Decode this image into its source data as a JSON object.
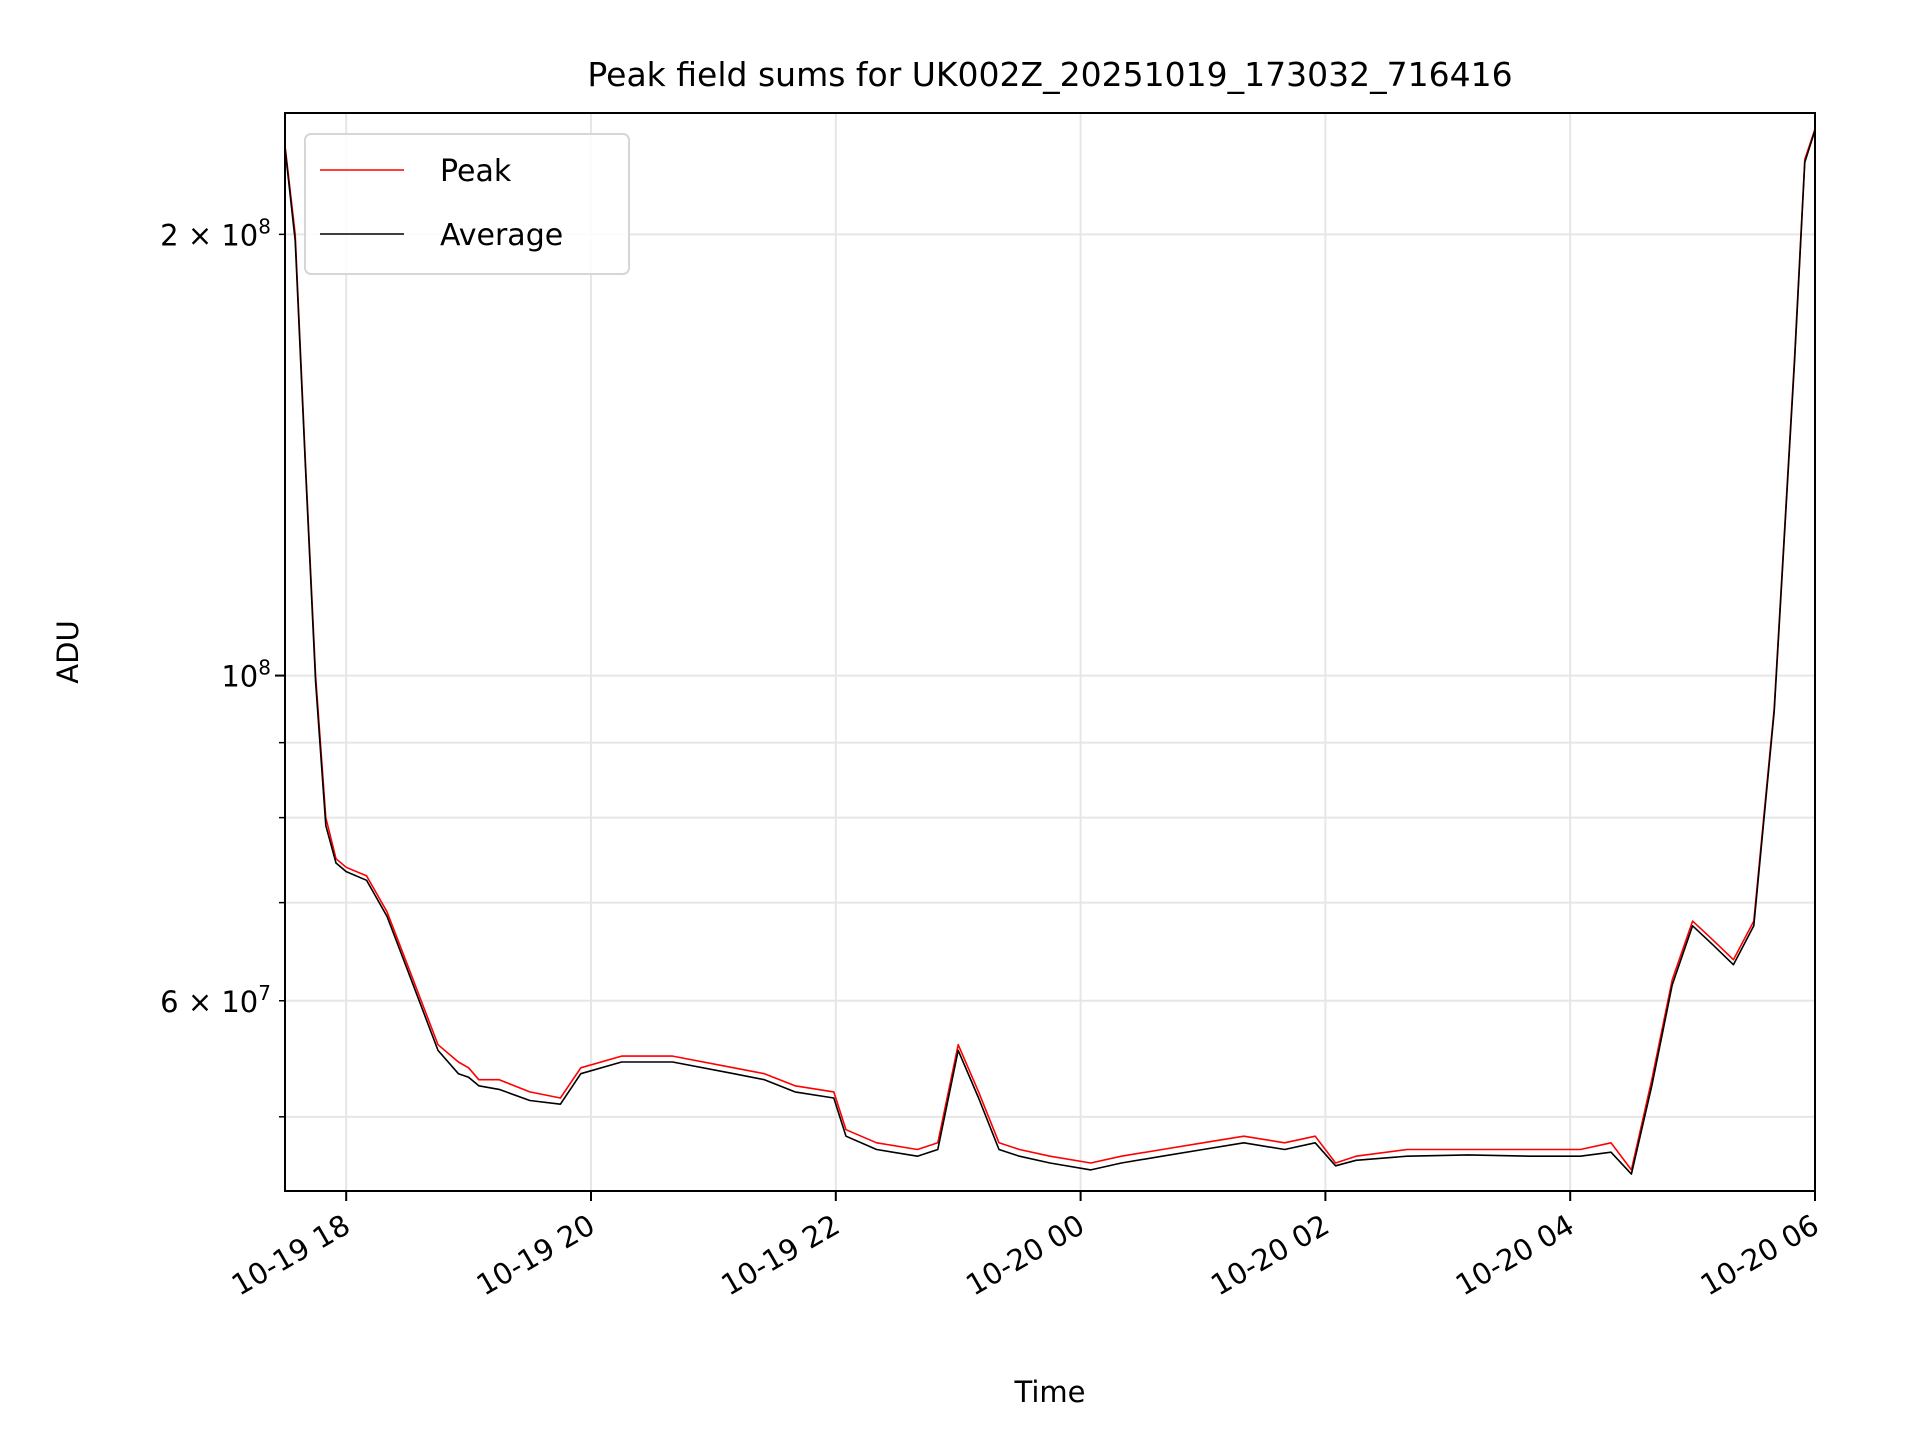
{
  "chart_data": {
    "type": "line",
    "title": "Peak field sums for UK002Z_20251019_173032_716416",
    "xlabel": "Time",
    "ylabel": "ADU",
    "yscale": "log",
    "grid": true,
    "legend_placement": "top-left",
    "xlim": [
      "2025-10-19 17:30",
      "2025-10-20 06:00"
    ],
    "ylim": [
      44500000,
      242000000
    ],
    "x_ticks": [
      {
        "value": "2025-10-19 18:00",
        "label": "10-19 18"
      },
      {
        "value": "2025-10-19 20:00",
        "label": "10-19 20"
      },
      {
        "value": "2025-10-19 22:00",
        "label": "10-19 22"
      },
      {
        "value": "2025-10-20 00:00",
        "label": "10-20 00"
      },
      {
        "value": "2025-10-20 02:00",
        "label": "10-20 02"
      },
      {
        "value": "2025-10-20 04:00",
        "label": "10-20 04"
      },
      {
        "value": "2025-10-20 06:00",
        "label": "10-20 06"
      }
    ],
    "y_major_ticks": [
      {
        "value": 100000000,
        "base": "10",
        "exp": "8"
      }
    ],
    "y_minor_ticks": [
      {
        "value": 200000000,
        "mant": "2",
        "exp": "8"
      },
      {
        "value": 60000000,
        "mant": "6",
        "exp": "7"
      }
    ],
    "y_minor_unlabeled": [
      50000000,
      70000000,
      80000000,
      90000000
    ],
    "series": [
      {
        "name": "Peak",
        "color": "#ff0000",
        "x": [
          "2025-10-19 17:30",
          "2025-10-19 17:35",
          "2025-10-19 17:40",
          "2025-10-19 17:45",
          "2025-10-19 17:50",
          "2025-10-19 17:55",
          "2025-10-19 18:00",
          "2025-10-19 18:10",
          "2025-10-19 18:20",
          "2025-10-19 18:30",
          "2025-10-19 18:45",
          "2025-10-19 18:55",
          "2025-10-19 19:00",
          "2025-10-19 19:05",
          "2025-10-19 19:15",
          "2025-10-19 19:30",
          "2025-10-19 19:45",
          "2025-10-19 19:55",
          "2025-10-19 20:15",
          "2025-10-19 20:40",
          "2025-10-19 21:10",
          "2025-10-19 21:25",
          "2025-10-19 21:40",
          "2025-10-19 21:59",
          "2025-10-19 22:05",
          "2025-10-19 22:20",
          "2025-10-19 22:40",
          "2025-10-19 22:50",
          "2025-10-19 23:00",
          "2025-10-19 23:10",
          "2025-10-19 23:20",
          "2025-10-19 23:30",
          "2025-10-19 23:45",
          "2025-10-20 00:05",
          "2025-10-20 00:20",
          "2025-10-20 00:40",
          "2025-10-20 01:00",
          "2025-10-20 01:20",
          "2025-10-20 01:40",
          "2025-10-20 01:55",
          "2025-10-20 02:05",
          "2025-10-20 02:15",
          "2025-10-20 02:40",
          "2025-10-20 03:10",
          "2025-10-20 03:40",
          "2025-10-20 04:05",
          "2025-10-20 04:20",
          "2025-10-20 04:30",
          "2025-10-20 04:40",
          "2025-10-20 04:50",
          "2025-10-20 05:00",
          "2025-10-20 05:10",
          "2025-10-20 05:20",
          "2025-10-20 05:30",
          "2025-10-20 05:40",
          "2025-10-20 05:50",
          "2025-10-20 05:55",
          "2025-10-20 06:00"
        ],
        "y": [
          230000000,
          200000000,
          140000000,
          100000000,
          80000000,
          75000000,
          74000000,
          73000000,
          69000000,
          63500000,
          56000000,
          54500000,
          54000000,
          53000000,
          53000000,
          52000000,
          51500000,
          54000000,
          55000000,
          55000000,
          54000000,
          53500000,
          52500000,
          52000000,
          49000000,
          48000000,
          47500000,
          48000000,
          56000000,
          52000000,
          48000000,
          47500000,
          47000000,
          46500000,
          47000000,
          47500000,
          48000000,
          48500000,
          48000000,
          48500000,
          46500000,
          47000000,
          47500000,
          47500000,
          47500000,
          47500000,
          48000000,
          46000000,
          53000000,
          62000000,
          68000000,
          66000000,
          64000000,
          68000000,
          95000000,
          165000000,
          225000000,
          236000000
        ]
      },
      {
        "name": "Average",
        "color": "#000000",
        "x": [
          "2025-10-19 17:30",
          "2025-10-19 17:35",
          "2025-10-19 17:40",
          "2025-10-19 17:45",
          "2025-10-19 17:50",
          "2025-10-19 17:55",
          "2025-10-19 18:00",
          "2025-10-19 18:10",
          "2025-10-19 18:20",
          "2025-10-19 18:30",
          "2025-10-19 18:45",
          "2025-10-19 18:55",
          "2025-10-19 19:00",
          "2025-10-19 19:05",
          "2025-10-19 19:15",
          "2025-10-19 19:30",
          "2025-10-19 19:45",
          "2025-10-19 19:55",
          "2025-10-19 20:15",
          "2025-10-19 20:40",
          "2025-10-19 21:10",
          "2025-10-19 21:25",
          "2025-10-19 21:40",
          "2025-10-19 21:59",
          "2025-10-19 22:05",
          "2025-10-19 22:20",
          "2025-10-19 22:40",
          "2025-10-19 22:50",
          "2025-10-19 23:00",
          "2025-10-19 23:10",
          "2025-10-19 23:20",
          "2025-10-19 23:30",
          "2025-10-19 23:45",
          "2025-10-20 00:05",
          "2025-10-20 00:20",
          "2025-10-20 00:40",
          "2025-10-20 01:00",
          "2025-10-20 01:20",
          "2025-10-20 01:40",
          "2025-10-20 01:55",
          "2025-10-20 02:05",
          "2025-10-20 02:15",
          "2025-10-20 02:40",
          "2025-10-20 03:10",
          "2025-10-20 03:40",
          "2025-10-20 04:05",
          "2025-10-20 04:20",
          "2025-10-20 04:30",
          "2025-10-20 04:40",
          "2025-10-20 04:50",
          "2025-10-20 05:00",
          "2025-10-20 05:10",
          "2025-10-20 05:20",
          "2025-10-20 05:30",
          "2025-10-20 05:40",
          "2025-10-20 05:50",
          "2025-10-20 05:55",
          "2025-10-20 06:00"
        ],
        "y": [
          229000000,
          198000000,
          139000000,
          99000000,
          79000000,
          74500000,
          73500000,
          72500000,
          68500000,
          63000000,
          55500000,
          53500000,
          53200000,
          52500000,
          52200000,
          51300000,
          51000000,
          53500000,
          54500000,
          54500000,
          53500000,
          53000000,
          52000000,
          51500000,
          48500000,
          47500000,
          47000000,
          47500000,
          55500000,
          51500000,
          47500000,
          47000000,
          46500000,
          46000000,
          46500000,
          47000000,
          47500000,
          48000000,
          47500000,
          48000000,
          46300000,
          46700000,
          47000000,
          47100000,
          47000000,
          47000000,
          47300000,
          45700000,
          52500000,
          61500000,
          67500000,
          65500000,
          63500000,
          67500000,
          94500000,
          164000000,
          224000000,
          235500000
        ]
      }
    ]
  }
}
